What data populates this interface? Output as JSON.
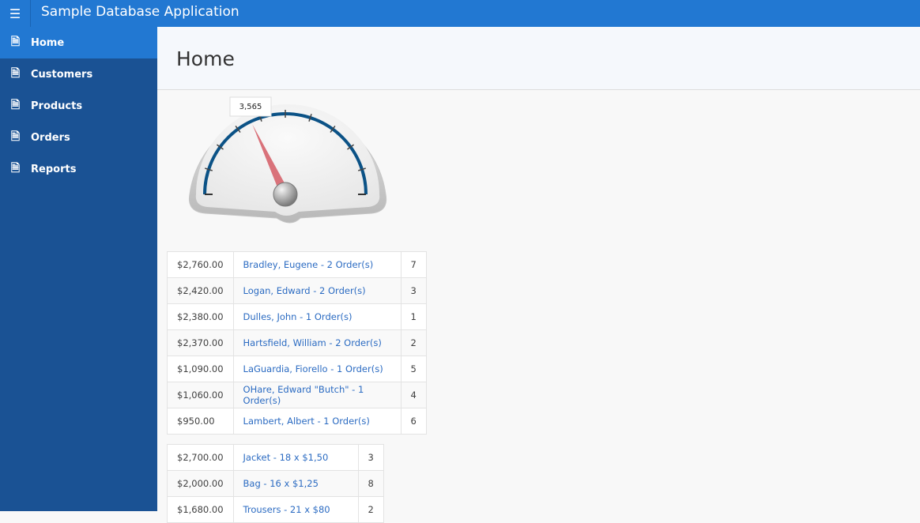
{
  "app": {
    "title": "Sample Database Application",
    "menu_icon": "hamburger-icon"
  },
  "sidebar": {
    "items": [
      {
        "label": "Home",
        "icon": "page-icon",
        "active": true
      },
      {
        "label": "Customers",
        "icon": "page-icon"
      },
      {
        "label": "Products",
        "icon": "page-icon"
      },
      {
        "label": "Orders",
        "icon": "page-icon"
      },
      {
        "label": "Reports",
        "icon": "page-icon"
      }
    ]
  },
  "page": {
    "title": "Home"
  },
  "gauge": {
    "value_label": "3,565",
    "fraction": 0.36,
    "arc_color": "#0b5286",
    "needle_color": "#d9727a"
  },
  "customers": [
    {
      "amount": "$2,760.00",
      "name": "Bradley, Eugene - 2 Order(s)",
      "id": "7"
    },
    {
      "amount": "$2,420.00",
      "name": "Logan, Edward - 2 Order(s)",
      "id": "3"
    },
    {
      "amount": "$2,380.00",
      "name": "Dulles, John - 1 Order(s)",
      "id": "1"
    },
    {
      "amount": "$2,370.00",
      "name": "Hartsfield, William - 2 Order(s)",
      "id": "2"
    },
    {
      "amount": "$1,090.00",
      "name": "LaGuardia, Fiorello - 1 Order(s)",
      "id": "5"
    },
    {
      "amount": "$1,060.00",
      "name": "OHare, Edward \"Butch\" - 1 Order(s)",
      "id": "4"
    },
    {
      "amount": "$950.00",
      "name": "Lambert, Albert - 1 Order(s)",
      "id": "6"
    }
  ],
  "products": [
    {
      "amount": "$2,700.00",
      "name": "Jacket - 18 x $1,50",
      "id": "3"
    },
    {
      "amount": "$2,000.00",
      "name": "Bag - 16 x $1,25",
      "id": "8"
    },
    {
      "amount": "$1,680.00",
      "name": "Trousers - 21 x $80",
      "id": "2"
    }
  ]
}
